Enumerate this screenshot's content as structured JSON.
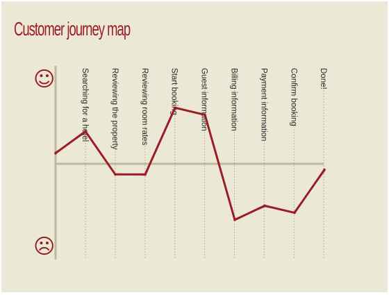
{
  "chart_data": {
    "type": "line",
    "title": "Customer journey map",
    "categories": [
      "Searching for a hotel",
      "Reviewing the property",
      "Reviewing room rates",
      "Start booking",
      "Guest information",
      "Billing information",
      "Payment information",
      "Confirm booking",
      "Done!"
    ],
    "series": [
      {
        "values": [
          0.18,
          0.55,
          -0.18,
          -0.18,
          0.95,
          0.83,
          -0.95,
          -0.71,
          -0.83,
          -0.1
        ]
      }
    ],
    "x": [
      0,
      1,
      2,
      3,
      4,
      5,
      6,
      7,
      8,
      9
    ],
    "ylim": [
      -1.5,
      1.5
    ],
    "y_top_icon": "smiley-face-icon",
    "y_bottom_icon": "frowning-face-icon",
    "line_color": "#9b1c24",
    "background": "#ebe9d6",
    "axis_color": "#bcb99c"
  },
  "icons": {
    "happy": "☺",
    "sad": "☹"
  }
}
